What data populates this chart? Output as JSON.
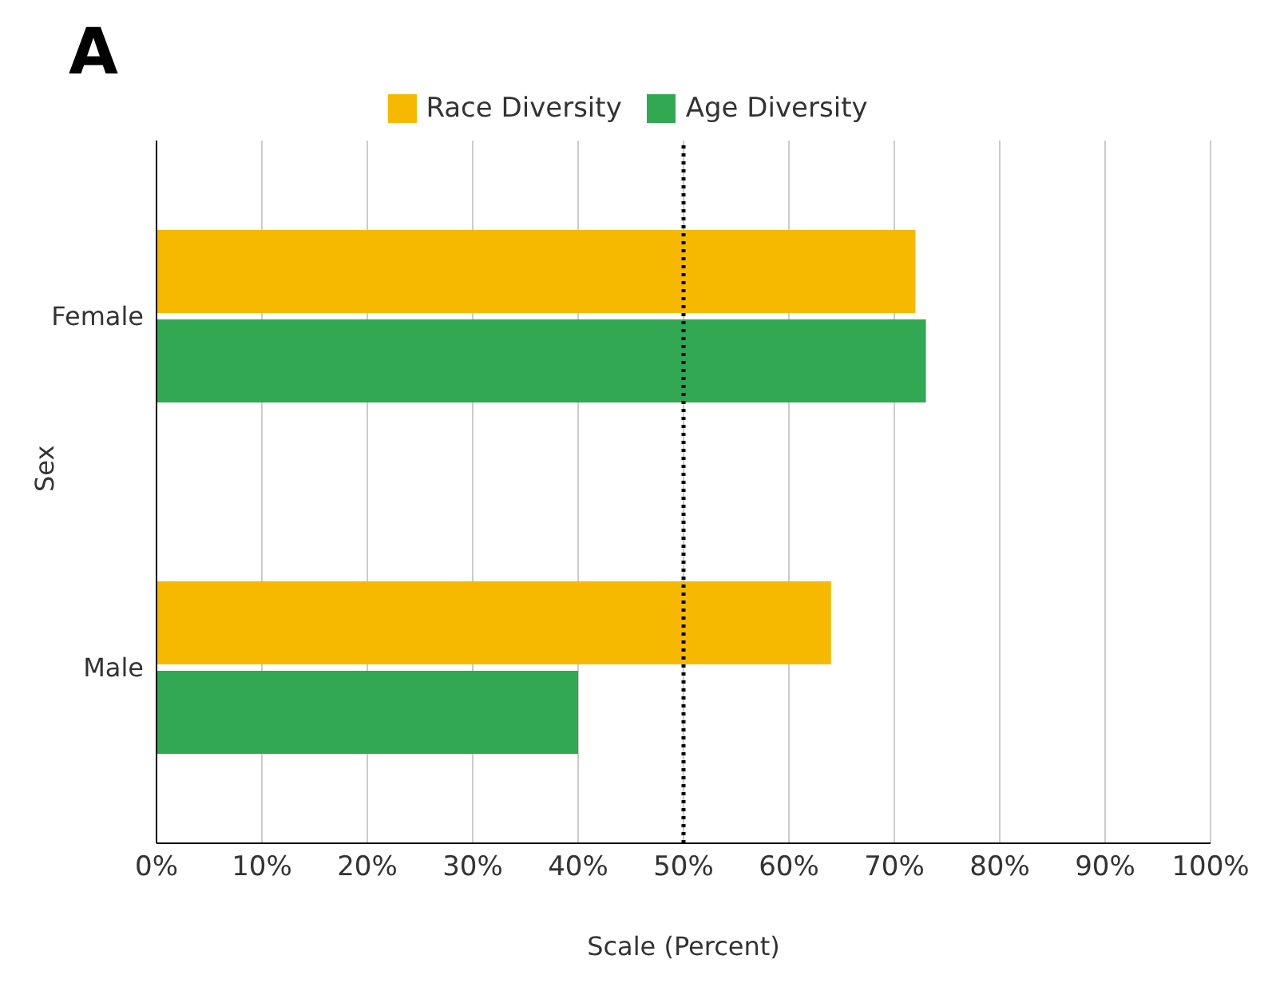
{
  "chart_data": {
    "type": "bar",
    "title": "A",
    "orientation": "horizontal",
    "categories": [
      "Female",
      "Male"
    ],
    "series": [
      {
        "name": "Race Diversity",
        "color": "#f7b900",
        "values": [
          72,
          64
        ]
      },
      {
        "name": "Age Diversity",
        "color": "#33a853",
        "values": [
          73,
          40
        ]
      }
    ],
    "xlim": [
      0,
      100
    ],
    "xticks": [
      {
        "value": 0,
        "label": "0%"
      },
      {
        "value": 10,
        "label": "10%"
      },
      {
        "value": 20,
        "label": "20%"
      },
      {
        "value": 30,
        "label": "30%"
      },
      {
        "value": 40,
        "label": "40%"
      },
      {
        "value": 50,
        "label": "50%"
      },
      {
        "value": 60,
        "label": "60%"
      },
      {
        "value": 70,
        "label": "70%"
      },
      {
        "value": 80,
        "label": "80%"
      },
      {
        "value": 90,
        "label": "90%"
      },
      {
        "value": 100,
        "label": "100%"
      }
    ],
    "xlabel": "Scale (Percent)",
    "ylabel": "Sex",
    "grid": "x",
    "legend": "top",
    "ref_lines": [
      {
        "axis": "x",
        "value": 50,
        "color": "#000000",
        "line_style": "dotted"
      }
    ]
  }
}
